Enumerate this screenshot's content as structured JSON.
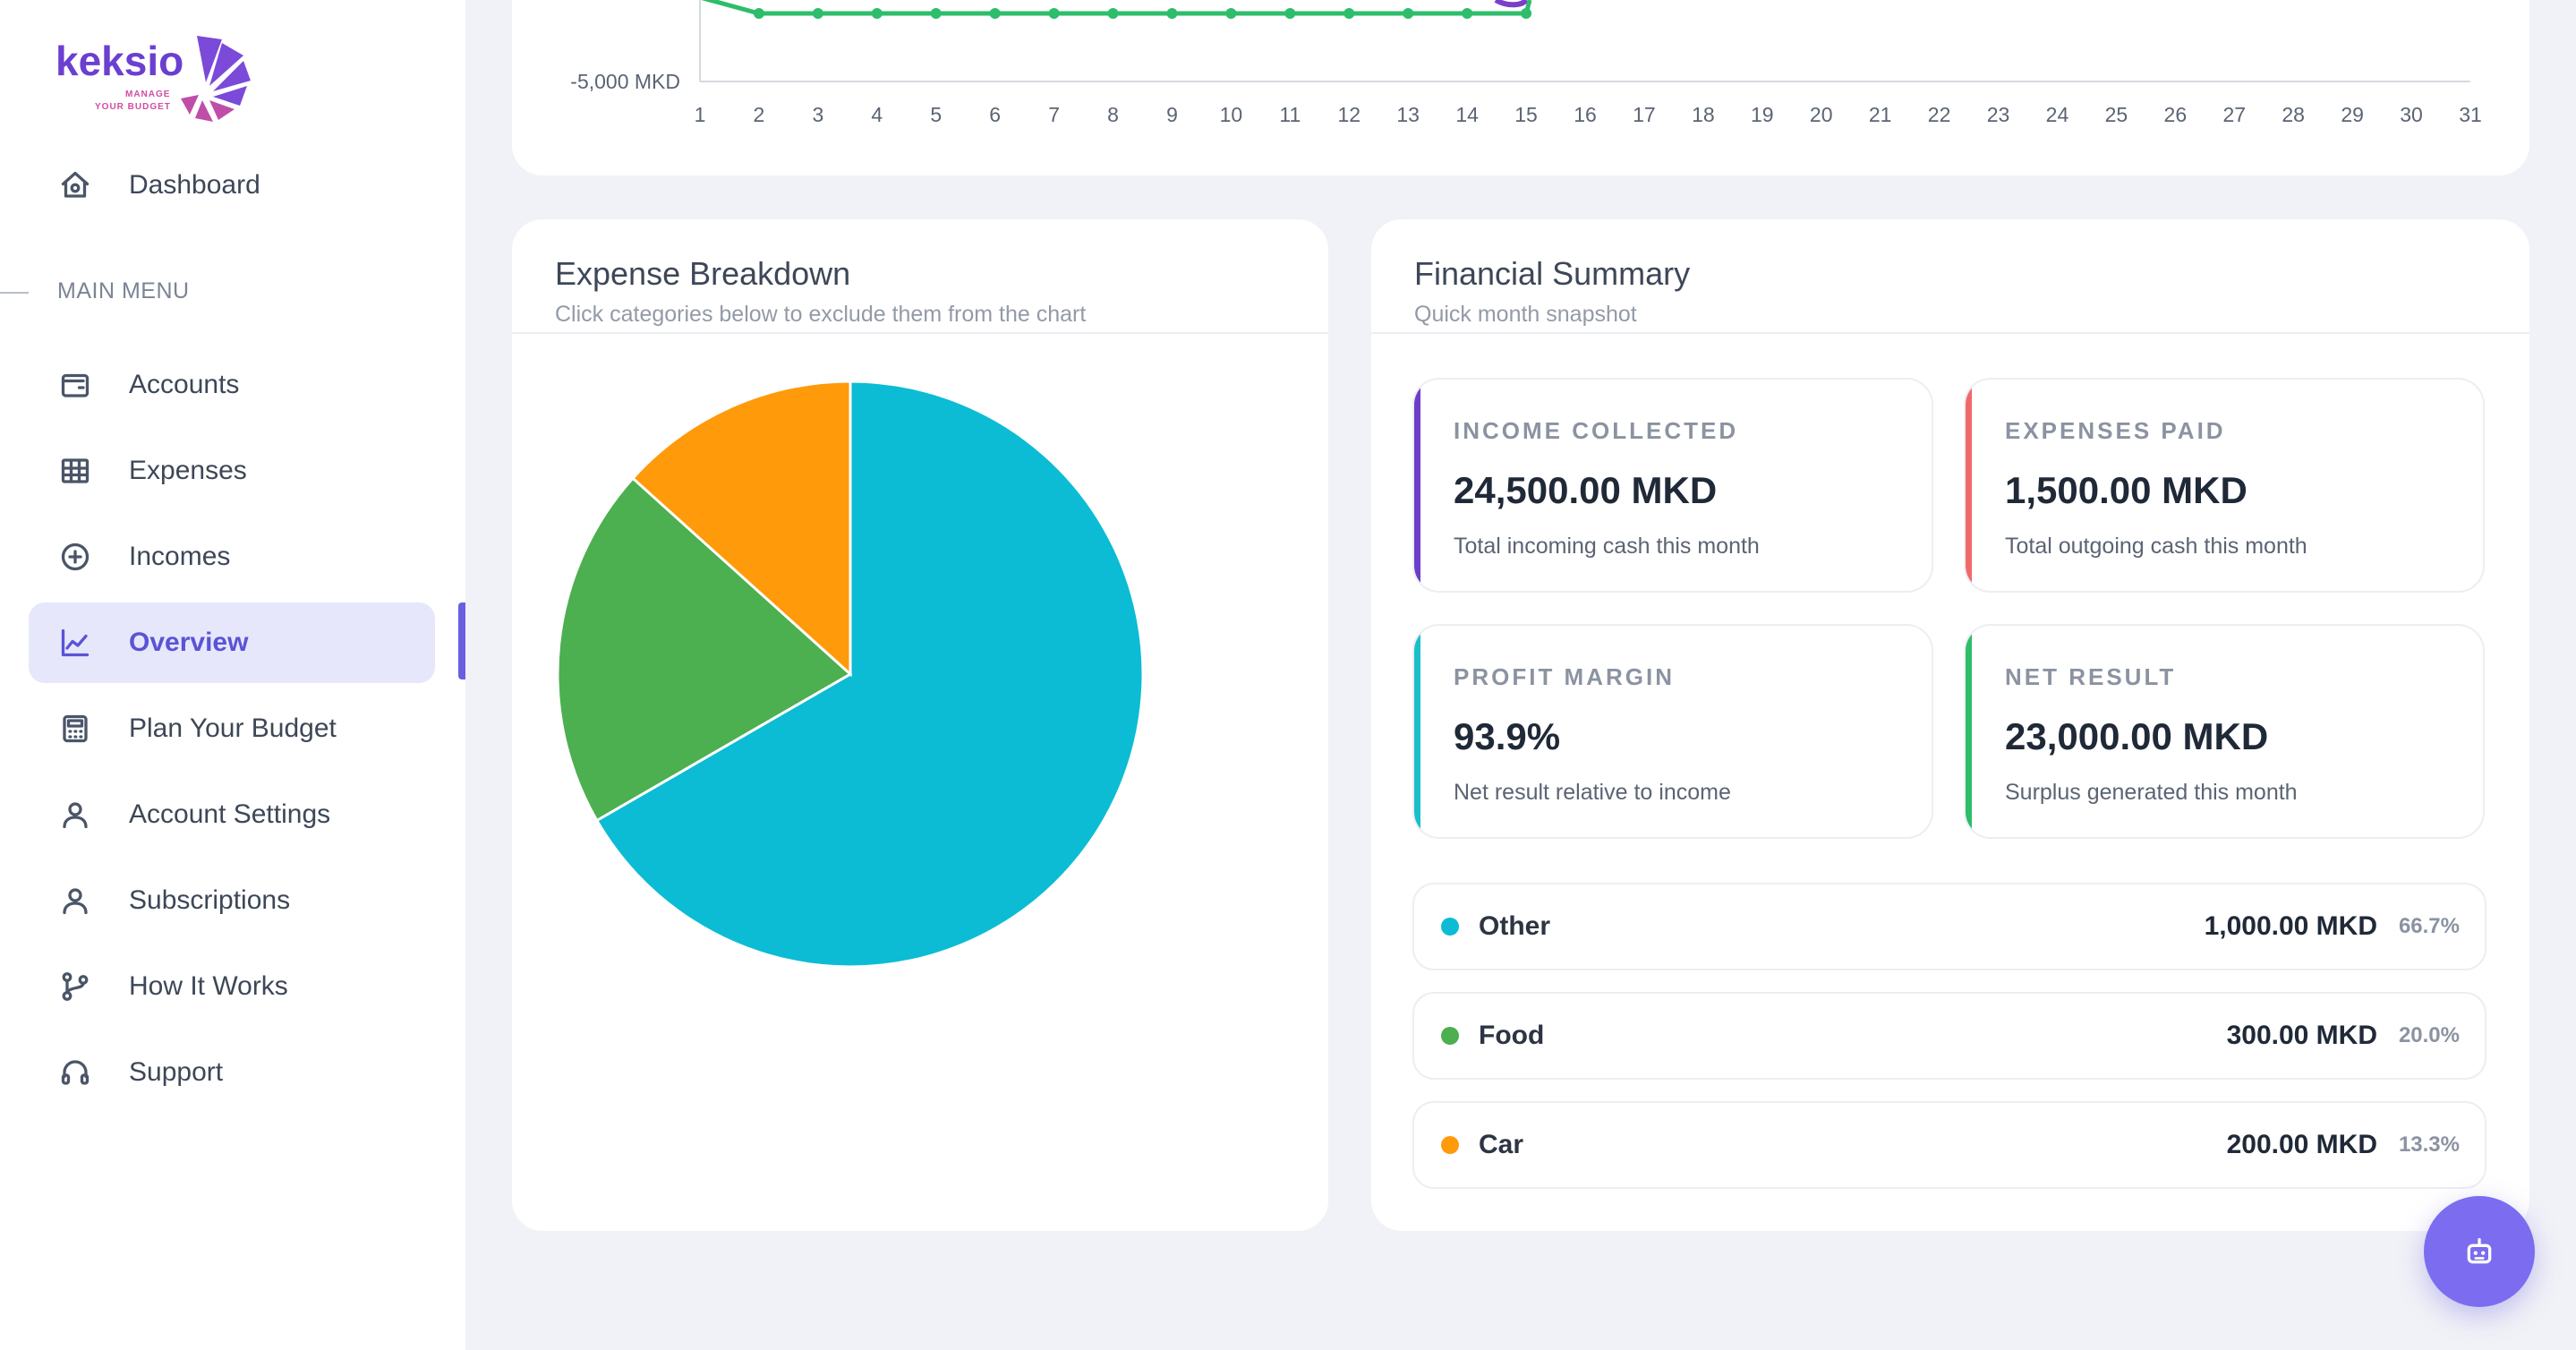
{
  "brand": {
    "name": "keksio",
    "tagline_1": "MANAGE",
    "tagline_2": "YOUR BUDGET",
    "colors": {
      "purple": "#6b3fd0",
      "pink": "#d04ea0"
    }
  },
  "sidebar": {
    "top_item": {
      "label": "Dashboard",
      "icon": "home-icon"
    },
    "section_label": "MAIN MENU",
    "items": [
      {
        "label": "Accounts",
        "icon": "wallet-icon"
      },
      {
        "label": "Expenses",
        "icon": "grid-icon"
      },
      {
        "label": "Incomes",
        "icon": "plus-circle-icon"
      },
      {
        "label": "Overview",
        "icon": "chart-line-icon",
        "active": true
      },
      {
        "label": "Plan Your Budget",
        "icon": "calculator-icon"
      },
      {
        "label": "Account Settings",
        "icon": "user-icon"
      },
      {
        "label": "Subscriptions",
        "icon": "user-icon"
      },
      {
        "label": "How It Works",
        "icon": "git-branch-icon"
      },
      {
        "label": "Support",
        "icon": "headset-icon"
      }
    ]
  },
  "daily_chart": {
    "ytick_label": "-5,000 MKD",
    "x_ticks": [
      "1",
      "2",
      "3",
      "4",
      "5",
      "6",
      "7",
      "8",
      "9",
      "10",
      "11",
      "12",
      "13",
      "14",
      "15",
      "16",
      "17",
      "18",
      "19",
      "20",
      "21",
      "22",
      "23",
      "24",
      "25",
      "26",
      "27",
      "28",
      "29",
      "30",
      "31"
    ],
    "series_points_days": 15,
    "series_color": "#2ebd6b",
    "secondary_color": "#7b3fc9"
  },
  "expense_breakdown": {
    "title": "Expense Breakdown",
    "subtitle": "Click categories below to exclude them from the chart"
  },
  "chart_data": {
    "type": "pie",
    "title": "",
    "categories": [
      "Other",
      "Food",
      "Car"
    ],
    "values": [
      1000,
      300,
      200
    ],
    "colors": [
      "#0bbcd4",
      "#4caf50",
      "#ff9a0b"
    ]
  },
  "financial_summary": {
    "title": "Financial Summary",
    "subtitle": "Quick month snapshot",
    "tiles": [
      {
        "label": "INCOME COLLECTED",
        "value": "24,500.00 MKD",
        "desc": "Total incoming cash this month",
        "color": "#6b3fc9"
      },
      {
        "label": "EXPENSES PAID",
        "value": "1,500.00 MKD",
        "desc": "Total outgoing cash this month",
        "color": "#f06a6a"
      },
      {
        "label": "PROFIT MARGIN",
        "value": "93.9%",
        "desc": "Net result relative to income",
        "color": "#1bbfc9"
      },
      {
        "label": "NET RESULT",
        "value": "23,000.00 MKD",
        "desc": "Surplus generated this month",
        "color": "#2ebd6b"
      }
    ],
    "categories": [
      {
        "name": "Other",
        "amount": "1,000.00 MKD",
        "pct": "66.7%",
        "color": "#0bbcd4"
      },
      {
        "name": "Food",
        "amount": "300.00 MKD",
        "pct": "20.0%",
        "color": "#4caf50"
      },
      {
        "name": "Car",
        "amount": "200.00 MKD",
        "pct": "13.3%",
        "color": "#ff9a0b"
      }
    ]
  },
  "assistant_button": {
    "icon": "robot-icon"
  }
}
